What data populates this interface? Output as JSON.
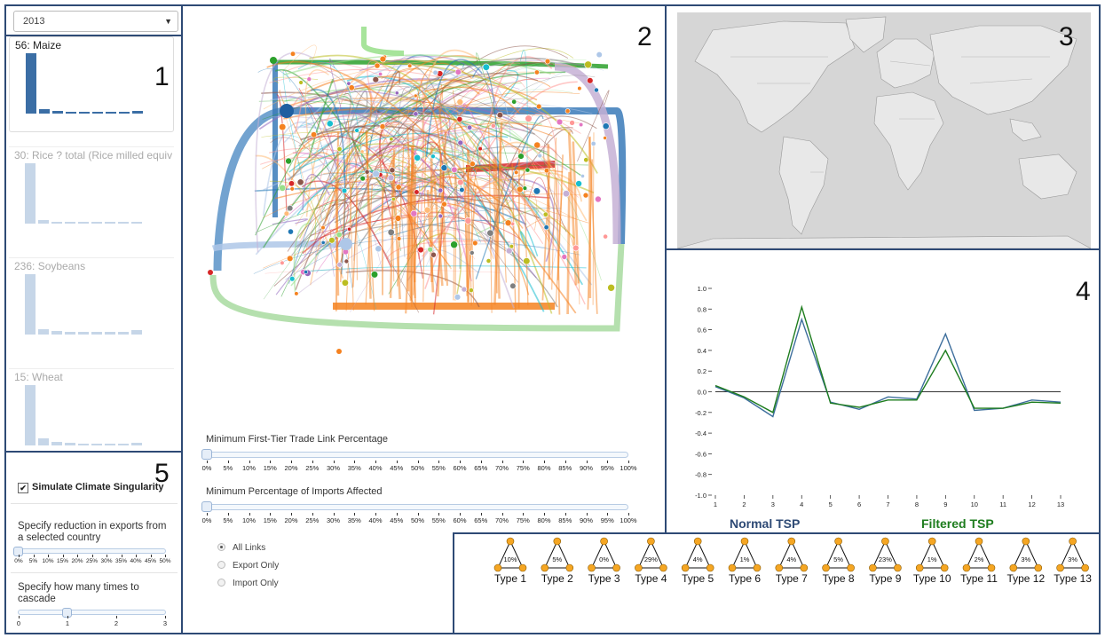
{
  "panels": {
    "p1": "1",
    "p2": "2",
    "p3": "3",
    "p4": "4",
    "p5": "5"
  },
  "year_select": {
    "value": "2013"
  },
  "crops": [
    {
      "title": "56: Maize",
      "active": true,
      "values": [
        100,
        8,
        5,
        3,
        3,
        3,
        3,
        3,
        4
      ]
    },
    {
      "title": "30: Rice ? total (Rice milled equival",
      "active": false,
      "values": [
        100,
        6,
        3,
        2,
        2,
        2,
        1,
        1,
        1
      ]
    },
    {
      "title": "236: Soybeans",
      "active": false,
      "values": [
        100,
        9,
        6,
        5,
        5,
        4,
        4,
        4,
        7
      ]
    },
    {
      "title": "15: Wheat",
      "active": false,
      "values": [
        100,
        12,
        6,
        4,
        3,
        3,
        3,
        3,
        4
      ]
    }
  ],
  "crop_colors": {
    "active": "#3b6ea5",
    "dim": "#c6d6e8"
  },
  "simulation": {
    "checkbox_label": "Simulate Climate Singularity",
    "checked": true,
    "reduction_label": "Specify reduction in exports from a selected country",
    "reduction_ticks": [
      "0%",
      "5%",
      "10%",
      "15%",
      "20%",
      "25%",
      "30%",
      "35%",
      "40%",
      "45%",
      "50%"
    ],
    "reduction_value": 0,
    "cascade_label": "Specify how many times to cascade",
    "cascade_ticks": [
      "0",
      "1",
      "2",
      "3"
    ],
    "cascade_value": 1
  },
  "network": {
    "link_slider_title": "Minimum First-Tier Trade Link Percentage",
    "imports_slider_title": "Minimum Percentage of Imports Affected",
    "percent_ticks": [
      "0%",
      "5%",
      "10%",
      "15%",
      "20%",
      "25%",
      "30%",
      "35%",
      "40%",
      "45%",
      "50%",
      "55%",
      "60%",
      "65%",
      "70%",
      "75%",
      "80%",
      "85%",
      "90%",
      "95%",
      "100%"
    ],
    "link_value": 0,
    "imports_value": 0,
    "radio_options": [
      {
        "label": "All Links",
        "checked": true
      },
      {
        "label": "Export Only",
        "checked": false
      },
      {
        "label": "Import Only",
        "checked": false
      }
    ],
    "link_colors": [
      "#f58220",
      "#f58220",
      "#f58220",
      "#1f77b4",
      "#2ca02c",
      "#d62728",
      "#98df8a",
      "#aec7e8",
      "#c5b0d5",
      "#ffbb78",
      "#9467bd",
      "#8c564b",
      "#e377c2",
      "#17becf",
      "#bcbd22",
      "#7f7f7f",
      "#ff9896"
    ]
  },
  "tsp_chart": {
    "chart_data": {
      "type": "line",
      "x": [
        1,
        2,
        3,
        4,
        5,
        6,
        7,
        8,
        9,
        10,
        11,
        12,
        13
      ],
      "series": [
        {
          "name": "Normal TSP",
          "color": "#3d6e9c",
          "values": [
            0.05,
            -0.06,
            -0.24,
            0.7,
            -0.1,
            -0.17,
            -0.05,
            -0.07,
            0.56,
            -0.18,
            -0.16,
            -0.08,
            -0.1
          ]
        },
        {
          "name": "Filtered TSP",
          "color": "#1e7d1e",
          "values": [
            0.06,
            -0.05,
            -0.2,
            0.82,
            -0.11,
            -0.15,
            -0.08,
            -0.08,
            0.4,
            -0.16,
            -0.16,
            -0.1,
            -0.11
          ]
        }
      ],
      "ylim": [
        -1.0,
        1.0
      ],
      "yticks": [
        "1.0",
        "0.8",
        "0.6",
        "0.4",
        "0.2",
        "0.0",
        "-0.2",
        "-0.4",
        "-0.6",
        "-0.8",
        "-1.0"
      ],
      "xticks": [
        "1",
        "2",
        "3",
        "4",
        "5",
        "6",
        "7",
        "8",
        "9",
        "10",
        "11",
        "12",
        "13"
      ],
      "legend": [
        "Normal TSP",
        "Filtered TSP"
      ]
    },
    "legend_normal": "Normal TSP",
    "legend_filtered": "Filtered TSP"
  },
  "triad_types": [
    {
      "label": "Type 1",
      "pct": "10%"
    },
    {
      "label": "Type 2",
      "pct": "5%"
    },
    {
      "label": "Type 3",
      "pct": "0%"
    },
    {
      "label": "Type 4",
      "pct": "29%"
    },
    {
      "label": "Type 5",
      "pct": "4%"
    },
    {
      "label": "Type 6",
      "pct": "1%"
    },
    {
      "label": "Type 7",
      "pct": "4%"
    },
    {
      "label": "Type 8",
      "pct": "5%"
    },
    {
      "label": "Type 9",
      "pct": "23%"
    },
    {
      "label": "Type 10",
      "pct": "1%"
    },
    {
      "label": "Type 11",
      "pct": "2%"
    },
    {
      "label": "Type 12",
      "pct": "3%"
    },
    {
      "label": "Type 13",
      "pct": "3%"
    }
  ],
  "node_color": "#f5a623"
}
